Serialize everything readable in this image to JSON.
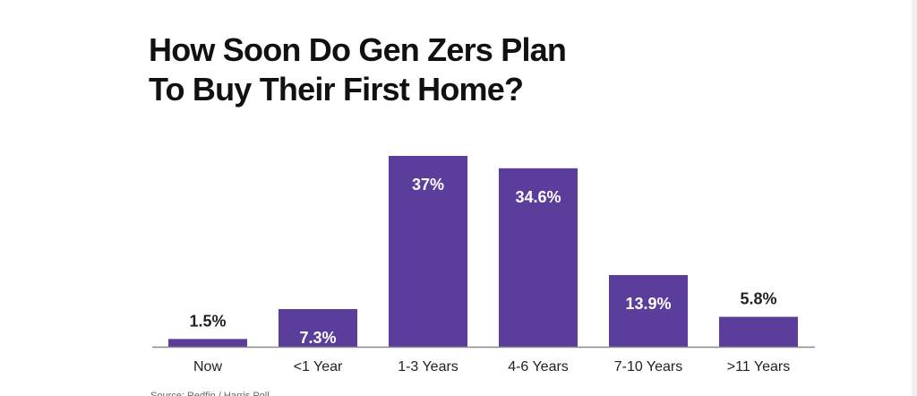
{
  "title_lines": [
    "How Soon Do Gen Zers Plan",
    "To Buy Their First Home?"
  ],
  "source_text": "Source: Redfin / Harris Poll",
  "colors": {
    "bar": "#5b3d9c",
    "axis": "#8a8a8a",
    "label_inside": "#ffffff",
    "label_outside": "#222222",
    "category_text": "#222222",
    "title": "#111111"
  },
  "chart_data": {
    "type": "bar",
    "categories": [
      "Now",
      "<1 Year",
      "1-3 Years",
      "4-6 Years",
      "7-10 Years",
      ">11 Years"
    ],
    "values": [
      1.5,
      7.3,
      37,
      34.6,
      13.9,
      5.8
    ],
    "data_labels": [
      "1.5%",
      "7.3%",
      "37%",
      "34.6%",
      "13.9%",
      "5.8%"
    ],
    "title": "How Soon Do Gen Zers Plan To Buy Their First Home?",
    "xlabel": "",
    "ylabel": "",
    "ylim": [
      0,
      37
    ],
    "grid": false,
    "legend": "none"
  }
}
